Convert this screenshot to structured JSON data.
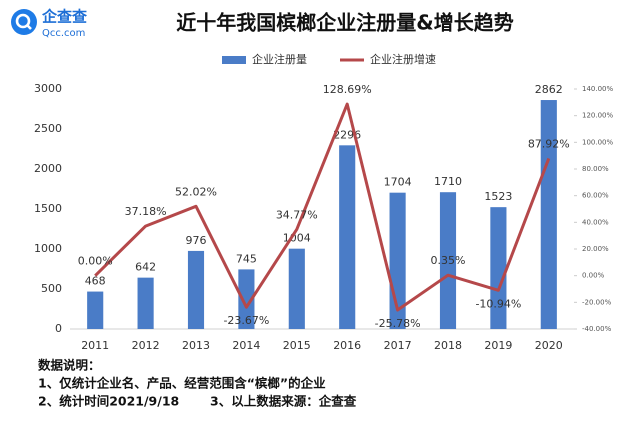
{
  "logo": {
    "name": "企查查",
    "site": "Qcc.com"
  },
  "chart_data": {
    "type": "bar",
    "title": "近十年我国槟榔企业注册量&增长趋势",
    "legend": "top",
    "categories": [
      "2011",
      "2012",
      "2013",
      "2014",
      "2015",
      "2016",
      "2017",
      "2018",
      "2019",
      "2020"
    ],
    "series": [
      {
        "name": "企业注册量",
        "type": "bar",
        "color": "#4a7cc7",
        "values": [
          468,
          642,
          976,
          745,
          1004,
          2296,
          1704,
          1710,
          1523,
          2862
        ]
      },
      {
        "name": "企业注册增速",
        "type": "line",
        "axis": "y2",
        "color": "#b5484a",
        "values": [
          0.0,
          37.18,
          52.02,
          -23.67,
          34.77,
          128.69,
          -25.78,
          0.35,
          -10.94,
          87.92
        ],
        "value_labels": [
          "0.00%",
          "37.18%",
          "52.02%",
          "-23.67%",
          "34.77%",
          "128.69%",
          "-25.78%",
          "0.35%",
          "-10.94%",
          "87.92%"
        ]
      }
    ],
    "ylim": [
      0,
      3000
    ],
    "yticks": [
      0,
      500,
      1000,
      1500,
      2000,
      2500,
      3000
    ],
    "y2lim": [
      -40,
      140
    ],
    "y2ticks": [
      {
        "value": -40,
        "label": "-40.00%"
      },
      {
        "value": -20,
        "label": "-20.00%"
      },
      {
        "value": 0,
        "label": "0.00%"
      },
      {
        "value": 20,
        "label": "20.00%"
      },
      {
        "value": 40,
        "label": "40.00%"
      },
      {
        "value": 60,
        "label": "60.00%"
      },
      {
        "value": 80,
        "label": "80.00%"
      },
      {
        "value": 100,
        "label": "100.00%"
      },
      {
        "value": 120,
        "label": "120.00%"
      },
      {
        "value": 140,
        "label": "140.00%"
      }
    ],
    "grid": false
  },
  "notes": {
    "heading": "数据说明：",
    "items": [
      "1、仅统计企业名、产品、经营范围含“槟榔”的企业",
      "2、统计时间2021/9/18",
      "3、以上数据来源：企查查"
    ]
  }
}
